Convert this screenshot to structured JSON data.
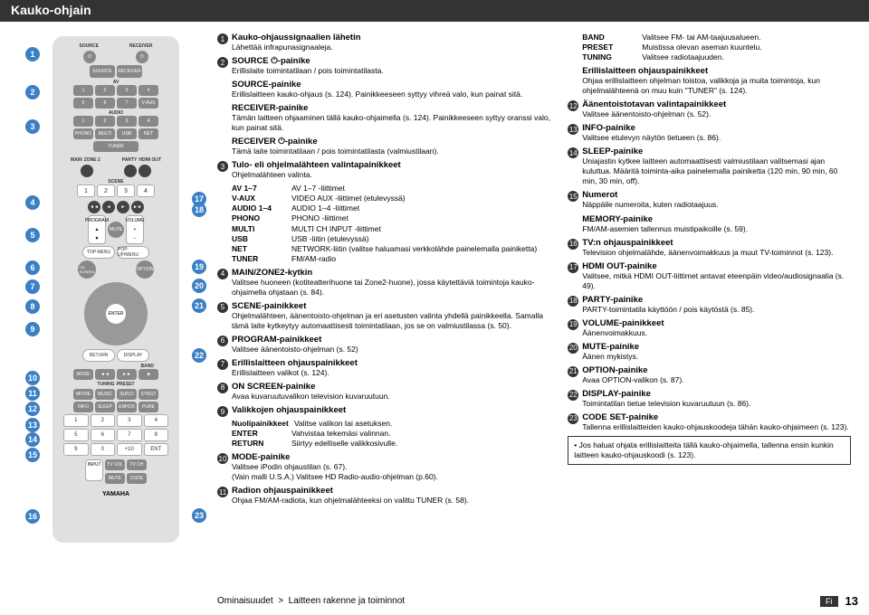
{
  "header": "Kauko-ohjain",
  "remote": {
    "top_labels": [
      "SOURCE",
      "RECEIVER"
    ],
    "av": "AV",
    "audio": "AUDIO",
    "row_nums": [
      "1",
      "2",
      "3",
      "4"
    ],
    "row_nums2": [
      "5",
      "6",
      "7",
      "V-AUX"
    ],
    "row_a": [
      "1",
      "2",
      "3",
      "4"
    ],
    "row_b": [
      "PHONO",
      "MULTI",
      "USB",
      "NET"
    ],
    "tuner": "TUNER",
    "main_zone": "MAIN",
    "zone2": "ZONE 2",
    "party": "PARTY",
    "hdmi": "HDMI OUT",
    "scene": "SCENE",
    "scene_nums": [
      "1",
      "2",
      "3",
      "4"
    ],
    "program": "PROGRAM",
    "mute": "MUTE",
    "volume": "VOLUME",
    "top_menu": "TOP MENU",
    "popup": "POP-UP/MENU",
    "on_screen": "ON\nSCREEN",
    "option": "OPTION",
    "enter": "ENTER",
    "return": "RETURN",
    "display": "DISPLAY",
    "band": "BAND",
    "mode": "MODE",
    "tuning": "TUNING",
    "preset": "PRESET",
    "movie": "MOVIE",
    "music": "MUSIC",
    "sur_decode": "SUR. DECODE",
    "straight": "STRAIGHT",
    "enhancer": "ENHANCER",
    "pure": "PURE DIRECT",
    "info": "INFO",
    "sleep": "SLEEP",
    "keypad": [
      "1",
      "2",
      "3",
      "4",
      "5",
      "6",
      "7",
      "8",
      "9",
      "0",
      "+10",
      "ENT"
    ],
    "memory": "MEMORY",
    "input": "INPUT",
    "tv_vol": "TV VOL",
    "tv_ch": "TV CH",
    "mute2": "MUTE",
    "code_set": "CODE SET",
    "logo": "YAMAHA"
  },
  "left_callouts": [
    12,
    54,
    92,
    176,
    212,
    248,
    269,
    291,
    316,
    370,
    387,
    404,
    422,
    438,
    455,
    523
  ],
  "right_callouts": {
    "17": 172,
    "18": 184,
    "19": 247,
    "20": 268,
    "21": 290,
    "22": 345,
    "23": 522
  },
  "col1": [
    {
      "n": "1",
      "title": "Kauko-ohjaussignaalien lähetin",
      "desc": "Lähettää infrapunasignaaleja."
    },
    {
      "n": "2",
      "title": "SOURCE ⏻-painike",
      "desc": "Erillislaite toimintatilaan / pois toimintatilasta."
    },
    {
      "sub": true,
      "title": "SOURCE-painike",
      "desc": "Erillislaitteen kauko-ohjaus (s. 124). Painikkeeseen syttyy vihreä valo, kun painat sitä."
    },
    {
      "sub": true,
      "title": "RECEIVER-painike",
      "desc": "Tämän laitteen ohjaaminen tällä kauko-ohjaimella (s. 124). Painikkeeseen syttyy oranssi valo, kun painat sitä."
    },
    {
      "sub": true,
      "title": "RECEIVER ⏻-painike",
      "desc": "Tämä laite toimintatilaan / pois toimintatilasta (valmiustilaan)."
    },
    {
      "n": "3",
      "title": "Tulo- eli ohjelmalähteen valintapainikkeet",
      "desc": "Ohjelmalähteen valinta."
    }
  ],
  "defs1": [
    {
      "k": "AV 1–7",
      "v": "AV 1–7 -liittimet"
    },
    {
      "k": "V-AUX",
      "v": "VIDEO AUX -liittimet (etulevyssä)"
    },
    {
      "k": "AUDIO 1–4",
      "v": "AUDIO 1–4 -liittimet"
    },
    {
      "k": "PHONO",
      "v": "PHONO -liittimet"
    },
    {
      "k": "MULTI",
      "v": "MULTI CH INPUT -liittimet"
    },
    {
      "k": "USB",
      "v": "USB -liitin (etulevyssä)"
    },
    {
      "k": "NET",
      "v": "NETWORK-liitin (valitse haluamasi verkkolähde painelemalla painiketta)"
    },
    {
      "k": "TUNER",
      "v": "FM/AM-radio"
    }
  ],
  "col1b": [
    {
      "n": "4",
      "title": "MAIN/ZONE2-kytkin",
      "desc": "Valitsee huoneen (kotiteatterihuone tai Zone2-huone), jossa käytettäviä toimintoja kauko-ohjaimella ohjataan (s. 84)."
    },
    {
      "n": "5",
      "title": "SCENE-painikkeet",
      "desc": "Ohjelmalähteen, äänentoisto-ohjelman ja eri asetusten valinta yhdellä painikkeella. Samalla tämä laite kytkeytyy automaattisesti toimintatilaan, jos se on valmiustilassa (s. 50)."
    },
    {
      "n": "6",
      "title": "PROGRAM-painikkeet",
      "desc": "Valitsee äänentoisto-ohjelman (s. 52)"
    },
    {
      "n": "7",
      "title": "Erillislaitteen ohjauspainikkeet",
      "desc": "Erillislaitteen valikot (s. 124)."
    },
    {
      "n": "8",
      "title": "ON SCREEN-painike",
      "desc": "Avaa kuvaruutuvalikon television kuvaruutuun."
    },
    {
      "n": "9",
      "title": "Valikkojen ohjauspainikkeet",
      "desc": ""
    }
  ],
  "defs2": [
    {
      "k": "Nuolipainikkeet",
      "v": "Valitse valikon tai asetuksen."
    },
    {
      "k": "ENTER",
      "v": "Vahvistaa tekemäsi valinnan."
    },
    {
      "k": "RETURN",
      "v": "Siirtyy edelliselle valikkosivulle."
    }
  ],
  "col1c": [
    {
      "n": "10",
      "title": "MODE-painike",
      "desc": "Valitsee iPodin ohjaustilan (s. 67).\n(Vain malli U.S.A.) Valitsee HD Radio-audio-ohjelman (p.60)."
    },
    {
      "n": "11",
      "title": "Radion ohjauspainikkeet",
      "desc": "Ohjaa FM/AM-radiota, kun ohjelmalähteeksi on valittu TUNER (s. 58)."
    }
  ],
  "defs3": [
    {
      "k": "BAND",
      "v": "Valitsee FM- tai AM-taajuusalueen."
    },
    {
      "k": "PRESET",
      "v": "Muistissa olevan aseman kuuntelu."
    },
    {
      "k": "TUNING",
      "v": "Valitsee radiotaajuuden."
    }
  ],
  "col2": [
    {
      "sub": true,
      "title": "Erillislaitteen ohjauspainikkeet",
      "desc": "Ohjaa erillislaitteen ohjelman toistoa, valikkoja ja muita toimintoja, kun ohjelmalähteenä on muu kuin \"TUNER\" (s. 124)."
    },
    {
      "n": "12",
      "title": "Äänentoistotavan valintapainikkeet",
      "desc": "Valitsee äänentoisto-ohjelman (s. 52)."
    },
    {
      "n": "13",
      "title": "INFO-painike",
      "desc": "Valitsee etulevyn näytön tietueen (s. 86)."
    },
    {
      "n": "14",
      "title": "SLEEP-painike",
      "desc": "Uniajastin kytkee laitteen automaattisesti valmiustilaan valitsemasi ajan kuluttua. Määritä toiminta-aika painelemalla painiketta (120 min, 90 min, 60 min, 30 min, off)."
    },
    {
      "n": "15",
      "title": "Numerot",
      "desc": "Näppäile numeroita, kuten radiotaajuus."
    },
    {
      "sub": true,
      "title": "MEMORY-painike",
      "desc": "FM/AM-asemien tallennus muistipaikoille (s. 59)."
    },
    {
      "n": "16",
      "title": "TV:n ohjauspainikkeet",
      "desc": "Television ohjelmalähde, äänenvoimakkuus ja muut TV-toiminnot (s. 123)."
    },
    {
      "n": "17",
      "title": "HDMI OUT-painike",
      "desc": "Valitsee, mitkä HDMI OUT-liittimet antavat eteenpäin video/audiosignaalia (s. 49)."
    },
    {
      "n": "18",
      "title": "PARTY-painike",
      "desc": "PARTY-toimintatila käyttöön / pois käytöstä (s. 85)."
    },
    {
      "n": "19",
      "title": "VOLUME-painikkeet",
      "desc": "Äänenvoimakkuus."
    },
    {
      "n": "20",
      "title": "MUTE-painike",
      "desc": "Äänen mykistys."
    },
    {
      "n": "21",
      "title": "OPTION-painike",
      "desc": "Avaa OPTION-valikon (s. 87)."
    },
    {
      "n": "22",
      "title": "DISPLAY-painike",
      "desc": "Toimintatilan tietue television kuvaruutuun (s. 86)."
    },
    {
      "n": "23",
      "title": "CODE SET-painike",
      "desc": "Tallenna erillislaitteiden kauko-ohjauskoodeja tähän kauko-ohjaimeen (s. 123)."
    }
  ],
  "note": "Jos haluat ohjata erillislaitteita tällä kauko-ohjaimella, tallenna ensin kunkin laitteen kauko-ohjauskoodi (s. 123).",
  "footer": {
    "breadcrumb_a": "Ominaisuudet",
    "breadcrumb_b": "Laitteen rakenne ja toiminnot",
    "lang": "Fi",
    "page": "13"
  },
  "colors": {
    "callout": "#3b7fc4",
    "header": "#333333"
  }
}
